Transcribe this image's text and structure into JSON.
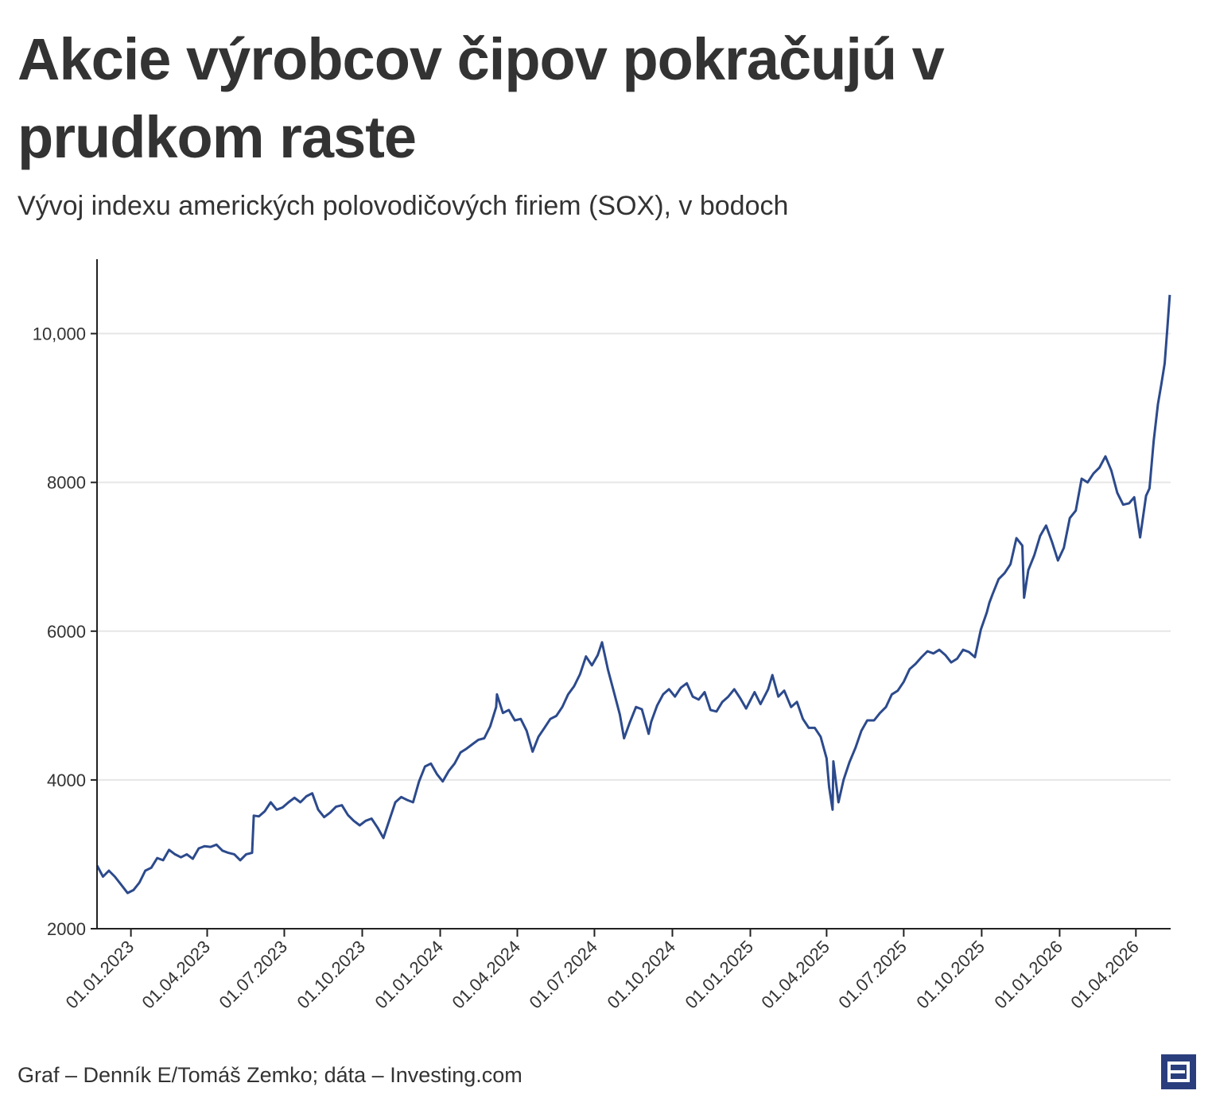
{
  "title": "Akcie výrobcov čipov pokračujú v prudkom raste",
  "subtitle": "Vývoj indexu amerických polovodičových firiem (SOX), v bodoch",
  "source": "Graf – Denník E/Tomáš Zemko; dáta – Investing.com",
  "logo_icon": "denniky-e-logo-icon",
  "colors": {
    "line": "#2c4a8c",
    "grid": "#e6e6e6",
    "axis": "#222222",
    "text": "#333333",
    "logo": "#2a3e7d"
  },
  "chart_data": {
    "type": "line",
    "title": "Akcie výrobcov čipov pokračujú v prudkom raste",
    "subtitle": "Vývoj indexu amerických polovodičových firiem (SOX), v bodoch",
    "xlabel": "",
    "ylabel": "",
    "ylim": [
      2000,
      11000
    ],
    "xlim": [
      "2022-11-22",
      "2026-05-12"
    ],
    "grid": "horizontal",
    "legend": "none",
    "y_ticks": [
      {
        "value": 2000,
        "label": "2000"
      },
      {
        "value": 4000,
        "label": "4000"
      },
      {
        "value": 6000,
        "label": "6000"
      },
      {
        "value": 8000,
        "label": "8000"
      },
      {
        "value": 10000,
        "label": "10,000"
      }
    ],
    "x_ticks": [
      {
        "value": "2023-01-01",
        "label": "01.01.2023"
      },
      {
        "value": "2023-04-01",
        "label": "01.04.2023"
      },
      {
        "value": "2023-07-01",
        "label": "01.07.2023"
      },
      {
        "value": "2023-10-01",
        "label": "01.10.2023"
      },
      {
        "value": "2024-01-01",
        "label": "01.01.2024"
      },
      {
        "value": "2024-04-01",
        "label": "01.04.2024"
      },
      {
        "value": "2024-07-01",
        "label": "01.07.2024"
      },
      {
        "value": "2024-10-01",
        "label": "01.10.2024"
      },
      {
        "value": "2025-01-01",
        "label": "01.01.2025"
      },
      {
        "value": "2025-04-01",
        "label": "01.04.2025"
      },
      {
        "value": "2025-07-01",
        "label": "01.07.2025"
      },
      {
        "value": "2025-10-01",
        "label": "01.10.2025"
      },
      {
        "value": "2026-01-01",
        "label": "01.01.2026"
      },
      {
        "value": "2026-04-01",
        "label": "01.04.2026"
      }
    ],
    "series": [
      {
        "x": [
          "2022-11-22",
          "2022-11-29",
          "2022-12-06",
          "2022-12-13",
          "2022-12-20",
          "2022-12-28",
          "2023-01-04",
          "2023-01-11",
          "2023-01-18",
          "2023-01-25",
          "2023-02-01",
          "2023-02-08",
          "2023-02-15",
          "2023-02-22",
          "2023-03-01",
          "2023-03-08",
          "2023-03-15",
          "2023-03-22",
          "2023-03-29",
          "2023-04-05",
          "2023-04-12",
          "2023-04-19",
          "2023-04-26",
          "2023-05-03",
          "2023-05-10",
          "2023-05-17",
          "2023-05-24",
          "2023-05-26",
          "2023-06-01",
          "2023-06-08",
          "2023-06-15",
          "2023-06-22",
          "2023-06-29",
          "2023-07-06",
          "2023-07-13",
          "2023-07-20",
          "2023-07-27",
          "2023-08-03",
          "2023-08-10",
          "2023-08-17",
          "2023-08-24",
          "2023-08-31",
          "2023-09-07",
          "2023-09-14",
          "2023-09-21",
          "2023-09-28",
          "2023-10-05",
          "2023-10-12",
          "2023-10-19",
          "2023-10-26",
          "2023-11-02",
          "2023-11-09",
          "2023-11-16",
          "2023-11-23",
          "2023-11-30",
          "2023-12-07",
          "2023-12-14",
          "2023-12-21",
          "2023-12-28",
          "2024-01-04",
          "2024-01-11",
          "2024-01-18",
          "2024-01-25",
          "2024-02-01",
          "2024-02-08",
          "2024-02-15",
          "2024-02-22",
          "2024-02-29",
          "2024-03-07",
          "2024-03-08",
          "2024-03-15",
          "2024-03-22",
          "2024-03-29",
          "2024-04-05",
          "2024-04-12",
          "2024-04-19",
          "2024-04-26",
          "2024-05-03",
          "2024-05-10",
          "2024-05-17",
          "2024-05-24",
          "2024-05-31",
          "2024-06-07",
          "2024-06-14",
          "2024-06-21",
          "2024-06-28",
          "2024-07-05",
          "2024-07-10",
          "2024-07-17",
          "2024-07-24",
          "2024-07-31",
          "2024-08-05",
          "2024-08-12",
          "2024-08-19",
          "2024-08-26",
          "2024-09-03",
          "2024-09-06",
          "2024-09-13",
          "2024-09-20",
          "2024-09-27",
          "2024-10-04",
          "2024-10-11",
          "2024-10-18",
          "2024-10-25",
          "2024-11-01",
          "2024-11-08",
          "2024-11-15",
          "2024-11-22",
          "2024-11-29",
          "2024-12-06",
          "2024-12-13",
          "2024-12-20",
          "2024-12-27",
          "2025-01-06",
          "2025-01-13",
          "2025-01-22",
          "2025-01-27",
          "2025-02-03",
          "2025-02-10",
          "2025-02-18",
          "2025-02-25",
          "2025-03-04",
          "2025-03-11",
          "2025-03-18",
          "2025-03-25",
          "2025-04-01",
          "2025-04-04",
          "2025-04-08",
          "2025-04-09",
          "2025-04-15",
          "2025-04-21",
          "2025-04-28",
          "2025-05-05",
          "2025-05-12",
          "2025-05-19",
          "2025-05-27",
          "2025-06-03",
          "2025-06-10",
          "2025-06-17",
          "2025-06-24",
          "2025-07-01",
          "2025-07-08",
          "2025-07-15",
          "2025-07-22",
          "2025-07-29",
          "2025-08-05",
          "2025-08-12",
          "2025-08-19",
          "2025-08-26",
          "2025-09-02",
          "2025-09-09",
          "2025-09-16",
          "2025-09-23",
          "2025-09-30",
          "2025-10-07",
          "2025-10-10",
          "2025-10-14",
          "2025-10-21",
          "2025-10-28",
          "2025-11-04",
          "2025-11-11",
          "2025-11-18",
          "2025-11-20",
          "2025-11-25",
          "2025-12-02",
          "2025-12-09",
          "2025-12-16",
          "2025-12-23",
          "2025-12-30",
          "2026-01-06",
          "2026-01-13",
          "2026-01-20",
          "2026-01-27",
          "2026-02-03",
          "2026-02-10",
          "2026-02-17",
          "2026-02-24",
          "2026-03-03",
          "2026-03-10",
          "2026-03-17",
          "2026-03-24",
          "2026-03-30",
          "2026-04-06",
          "2026-04-13",
          "2026-04-17",
          "2026-04-22",
          "2026-04-27",
          "2026-05-01",
          "2026-05-05",
          "2026-05-08",
          "2026-05-11"
        ],
        "y": [
          2850,
          2700,
          2780,
          2700,
          2600,
          2480,
          2520,
          2620,
          2780,
          2820,
          2950,
          2920,
          3060,
          3000,
          2960,
          3000,
          2940,
          3080,
          3110,
          3100,
          3130,
          3050,
          3020,
          3000,
          2920,
          3000,
          3020,
          3520,
          3510,
          3580,
          3700,
          3600,
          3630,
          3700,
          3760,
          3700,
          3780,
          3820,
          3600,
          3500,
          3560,
          3640,
          3660,
          3530,
          3450,
          3390,
          3450,
          3480,
          3360,
          3220,
          3460,
          3700,
          3770,
          3730,
          3700,
          3980,
          4180,
          4220,
          4080,
          3980,
          4120,
          4220,
          4370,
          4420,
          4480,
          4540,
          4560,
          4720,
          4980,
          5150,
          4900,
          4940,
          4800,
          4820,
          4660,
          4380,
          4580,
          4700,
          4820,
          4860,
          4980,
          5150,
          5260,
          5420,
          5660,
          5540,
          5680,
          5850,
          5480,
          5180,
          4880,
          4560,
          4780,
          4980,
          4950,
          4620,
          4780,
          5000,
          5150,
          5220,
          5120,
          5240,
          5300,
          5120,
          5080,
          5180,
          4940,
          4920,
          5050,
          5120,
          5220,
          5100,
          4960,
          5180,
          5020,
          5220,
          5410,
          5120,
          5200,
          4980,
          5050,
          4820,
          4700,
          4700,
          4580,
          4290,
          3900,
          3600,
          4250,
          3700,
          4000,
          4240,
          4430,
          4660,
          4800,
          4800,
          4900,
          4980,
          5150,
          5200,
          5320,
          5490,
          5560,
          5650,
          5730,
          5700,
          5750,
          5680,
          5580,
          5630,
          5750,
          5720,
          5650,
          6020,
          6250,
          6380,
          6500,
          6700,
          6780,
          6900,
          7250,
          7150,
          6450,
          6820,
          7020,
          7280,
          7420,
          7200,
          6950,
          7120,
          7520,
          7620,
          8050,
          8000,
          8120,
          8200,
          8350,
          8160,
          7860,
          7700,
          7720,
          7800,
          7260,
          7820,
          7920,
          8560,
          9050,
          9320,
          9600,
          10050,
          10520
        ]
      }
    ]
  }
}
